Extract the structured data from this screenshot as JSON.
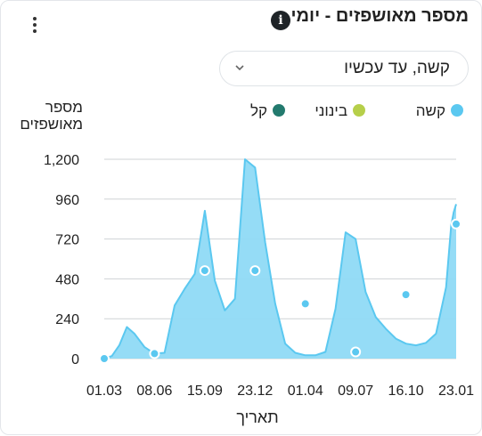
{
  "header": {
    "title": "מספר מאושפזים - יומי",
    "info_icon": "info-icon",
    "menu_icon": "kebab-icon"
  },
  "filter": {
    "selected": "קשה, עד עכשיו",
    "icon": "chevron-down-icon"
  },
  "legend": [
    {
      "label": "קשה",
      "color": "#5bc8f0"
    },
    {
      "label": "בינוני",
      "color": "#b6cf4a"
    },
    {
      "label": "קל",
      "color": "#237a6e"
    }
  ],
  "chart_data": {
    "type": "area",
    "ylabel_lines": [
      "מספר",
      "מאושפזים"
    ],
    "xlabel": "תאריך",
    "yticks": [
      0,
      240,
      480,
      720,
      960,
      1200
    ],
    "ytick_labels": [
      "0",
      "240",
      "480",
      "720",
      "960",
      "1,200"
    ],
    "ylim": [
      0,
      1200
    ],
    "grid": true,
    "xtick_labels": [
      "01.03",
      "08.06",
      "15.09",
      "23.12",
      "01.04",
      "09.07",
      "16.10",
      "23.01"
    ],
    "series": [
      {
        "color": "#5bc8f0",
        "x": [
          0,
          0.15,
          0.3,
          0.45,
          0.6,
          0.8,
          1,
          1.2,
          1.4,
          1.6,
          1.8,
          2,
          2.2,
          2.4,
          2.6,
          2.8,
          3,
          3.2,
          3.4,
          3.6,
          3.8,
          4,
          4.2,
          4.4,
          4.6,
          4.8,
          5,
          5.2,
          5.4,
          5.6,
          5.8,
          6,
          6.2,
          6.4,
          6.6,
          6.8,
          6.9,
          6.95,
          7
        ],
        "values": [
          2,
          15,
          80,
          190,
          150,
          70,
          30,
          35,
          320,
          420,
          510,
          890,
          470,
          290,
          360,
          1200,
          1150,
          700,
          330,
          90,
          35,
          20,
          20,
          40,
          300,
          760,
          720,
          400,
          250,
          180,
          120,
          90,
          80,
          95,
          150,
          430,
          800,
          880,
          930
        ]
      }
    ],
    "markers": {
      "x": [
        0,
        1,
        2,
        3,
        4,
        5,
        6,
        7
      ],
      "values": [
        0,
        30,
        530,
        530,
        330,
        40,
        385,
        810
      ]
    }
  }
}
